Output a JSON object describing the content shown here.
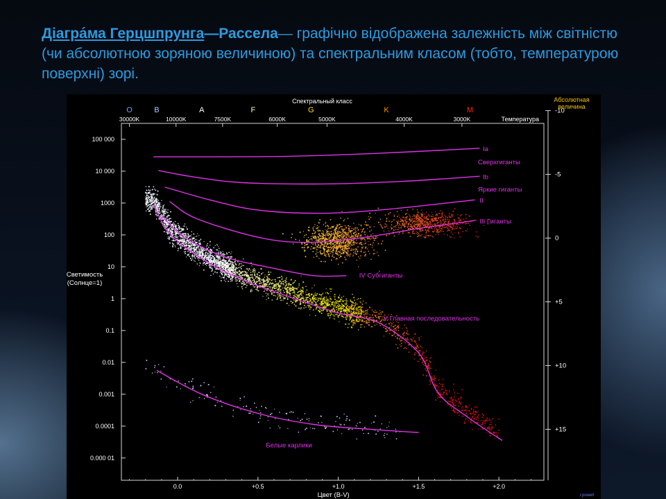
{
  "slide": {
    "title_linked": "Діагра́ма Герцшпрунга",
    "title_dash_bold": "—Рассела",
    "title_rest": "— графічно відображена залежність між світністю (чи абсолютною зоряною величиною) та спектральним класом (тобто, температурою поверхні) зорі",
    "title_end": "."
  },
  "colors": {
    "title": "#2c9be0",
    "curve": "#e032e8",
    "axis_text": "#ffffff",
    "class_letters": [
      "#7fa0ff",
      "#b6c4ff",
      "#ffffff",
      "#fff4c0",
      "#ffe000",
      "#ff8a00",
      "#ff2a00"
    ]
  },
  "chart_data": {
    "type": "scatter",
    "top_axis_title": "Спектральный класс",
    "spectral_classes": [
      {
        "letter": "O",
        "bv": -0.3
      },
      {
        "letter": "B",
        "bv": -0.13
      },
      {
        "letter": "A",
        "bv": 0.15
      },
      {
        "letter": "F",
        "bv": 0.47
      },
      {
        "letter": "G",
        "bv": 0.83
      },
      {
        "letter": "K",
        "bv": 1.3
      },
      {
        "letter": "M",
        "bv": 1.82
      }
    ],
    "temperature_label": "Температура",
    "temperature_ticks": [
      {
        "label": "30000K",
        "bv": -0.3
      },
      {
        "label": "10000K",
        "bv": -0.01
      },
      {
        "label": "7500K",
        "bv": 0.28
      },
      {
        "label": "6000K",
        "bv": 0.62
      },
      {
        "label": "5000K",
        "bv": 0.93
      },
      {
        "label": "4000K",
        "bv": 1.41
      },
      {
        "label": "3000K",
        "bv": 1.77
      }
    ],
    "xlabel": "Цвет (B-V)",
    "x_ticks": [
      {
        "label": "0.0",
        "bv": 0
      },
      {
        "label": "+0.5",
        "bv": 0.5
      },
      {
        "label": "+1.0",
        "bv": 1.0
      },
      {
        "label": "+1.5",
        "bv": 1.5
      },
      {
        "label": "+2.0",
        "bv": 2.0
      }
    ],
    "xlim": [
      -0.35,
      2.28
    ],
    "ylabel": [
      "Светимость",
      "(Солнце=1)"
    ],
    "y_scale": "log",
    "ylim_log10": [
      -5.7,
      5.5
    ],
    "y_ticks": [
      {
        "label": "100 000",
        "log": 5
      },
      {
        "label": "10 000",
        "log": 4
      },
      {
        "label": "1000",
        "log": 3
      },
      {
        "label": "100",
        "log": 2
      },
      {
        "label": "10",
        "log": 1
      },
      {
        "label": "1",
        "log": 0
      },
      {
        "label": "0.1",
        "log": -1
      },
      {
        "label": "0.01",
        "log": -2
      },
      {
        "label": "0.001",
        "log": -3
      },
      {
        "label": "0.0001",
        "log": -4
      },
      {
        "label": "0.000 01",
        "log": -5
      }
    ],
    "right_axis_title": [
      "Абсолютная",
      "величина"
    ],
    "mag_ticks": [
      {
        "label": "-10",
        "log": 5.9
      },
      {
        "label": "-5",
        "log": 3.9
      },
      {
        "label": "0",
        "log": 1.9
      },
      {
        "label": "+5",
        "log": -0.1
      },
      {
        "label": "+10",
        "log": -2.1
      },
      {
        "label": "+15",
        "log": -4.1
      }
    ],
    "luminosity_classes": [
      {
        "id": "Ia",
        "label": "Ia",
        "points": [
          [
            -0.15,
            4.45
          ],
          [
            0.6,
            4.46
          ],
          [
            1.2,
            4.55
          ],
          [
            1.88,
            4.72
          ]
        ]
      },
      {
        "id": "Ib",
        "label": "Ib",
        "points": [
          [
            -0.12,
            4.02
          ],
          [
            0.1,
            3.82
          ],
          [
            0.4,
            3.64
          ],
          [
            0.9,
            3.6
          ],
          [
            1.4,
            3.68
          ],
          [
            1.88,
            3.84
          ]
        ]
      },
      {
        "id": "II",
        "label": "II",
        "points": [
          [
            -0.08,
            3.5
          ],
          [
            0.2,
            3.1
          ],
          [
            0.5,
            2.78
          ],
          [
            0.9,
            2.68
          ],
          [
            1.3,
            2.8
          ],
          [
            1.85,
            3.1
          ]
        ]
      },
      {
        "id": "III",
        "label": "III",
        "points": [
          [
            -0.05,
            3.05
          ],
          [
            0.1,
            2.55
          ],
          [
            0.4,
            2.05
          ],
          [
            0.65,
            1.8
          ],
          [
            0.9,
            1.78
          ],
          [
            1.2,
            1.95
          ],
          [
            1.5,
            2.2
          ],
          [
            1.85,
            2.45
          ]
        ]
      },
      {
        "id": "IV",
        "label": "IV",
        "points": [
          [
            -0.1,
            2.6
          ],
          [
            0.05,
            1.9
          ],
          [
            0.3,
            1.3
          ],
          [
            0.6,
            0.95
          ],
          [
            0.85,
            0.72
          ],
          [
            1.05,
            0.72
          ]
        ]
      },
      {
        "id": "V",
        "label": "V",
        "points": [
          [
            -0.15,
            2.95
          ],
          [
            -0.05,
            2.05
          ],
          [
            0.15,
            1.25
          ],
          [
            0.4,
            0.6
          ],
          [
            0.7,
            0.05
          ],
          [
            1.0,
            -0.45
          ],
          [
            1.25,
            -0.75
          ],
          [
            1.5,
            -1.7
          ],
          [
            1.62,
            -2.95
          ],
          [
            1.8,
            -3.7
          ],
          [
            2.02,
            -4.45
          ]
        ]
      },
      {
        "id": "WD",
        "label": "",
        "points": [
          [
            -0.13,
            -2.25
          ],
          [
            0.15,
            -3.0
          ],
          [
            0.5,
            -3.6
          ],
          [
            0.85,
            -3.95
          ],
          [
            1.2,
            -4.1
          ],
          [
            1.5,
            -4.2
          ]
        ]
      }
    ],
    "annotations": [
      {
        "text": "Ia",
        "bv": 1.9,
        "log": 4.7,
        "color": "#e032e8"
      },
      {
        "text": "Сверхгиганты",
        "bv": 1.87,
        "log": 4.28,
        "color": "#e032e8"
      },
      {
        "text": "Ib",
        "bv": 1.9,
        "log": 3.82,
        "color": "#e032e8"
      },
      {
        "text": "Яркие гиганты",
        "bv": 1.87,
        "log": 3.42,
        "color": "#e032e8"
      },
      {
        "text": "II",
        "bv": 1.88,
        "log": 3.08,
        "color": "#e032e8"
      },
      {
        "text": "III  Гиганты",
        "bv": 1.88,
        "log": 2.42,
        "color": "#e032e8"
      },
      {
        "text": "IV Субгиганты",
        "bv": 1.13,
        "log": 0.73,
        "color": "#e032e8"
      },
      {
        "text": "V Главная последовательность",
        "bv": 1.28,
        "log": -0.62,
        "color": "#e032e8"
      },
      {
        "text": "Белые карлики",
        "bv": 0.55,
        "log": -4.6,
        "color": "#e032e8"
      }
    ],
    "star_clouds": [
      {
        "name": "main-sequence-hot",
        "bv_range": [
          -0.2,
          0.35
        ],
        "count": 1500,
        "color": "#ffffff"
      },
      {
        "name": "main-sequence-mid",
        "bv_range": [
          0.25,
          1.15
        ],
        "count": 1300,
        "color": "#f2f060"
      },
      {
        "name": "main-sequence-cool",
        "bv_range": [
          1.05,
          2.0
        ],
        "count": 650,
        "color": "#e83a1a"
      },
      {
        "name": "giant-clump",
        "center": [
          1.0,
          1.8
        ],
        "count": 900,
        "color": "#f4a020"
      },
      {
        "name": "red-giants",
        "center": [
          1.55,
          2.35
        ],
        "count": 650,
        "color": "#e85020"
      },
      {
        "name": "white-dwarfs",
        "bv_range": [
          -0.2,
          1.4
        ],
        "count": 160,
        "color": "#cfd6ff"
      }
    ],
    "credit": "r.powell"
  }
}
